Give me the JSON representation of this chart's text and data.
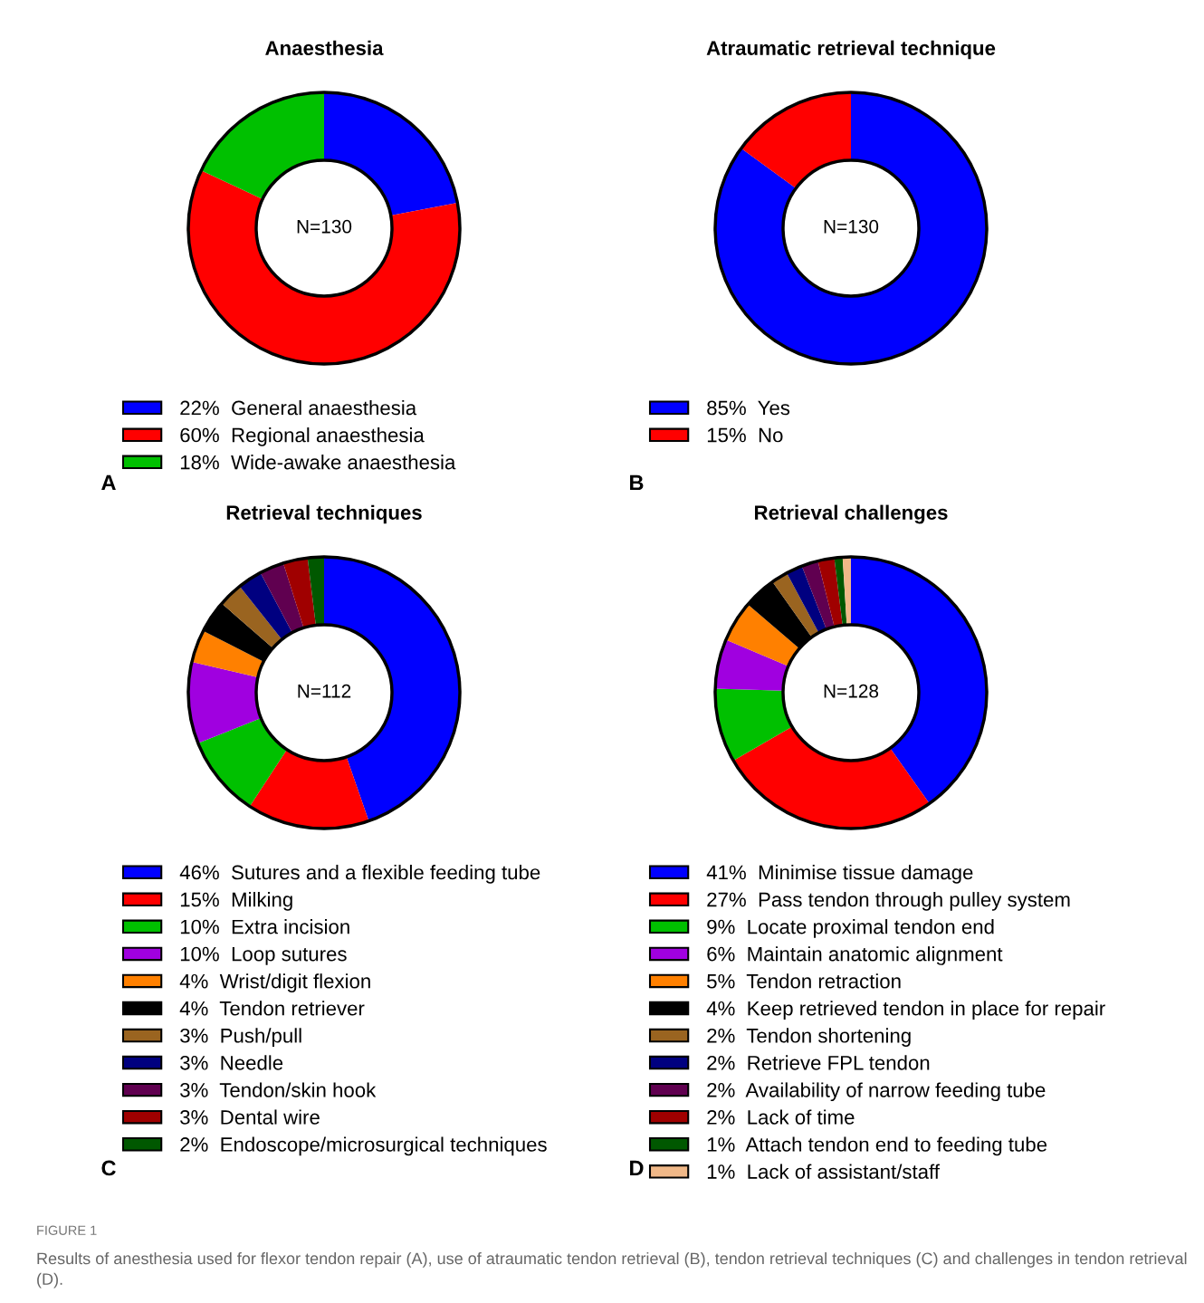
{
  "chart_data": [
    {
      "type": "donut",
      "title": "Anaesthesia",
      "categories": [
        "General anaesthesia",
        "Regional anaesthesia",
        "Wide-awake anaesthesia"
      ],
      "values": [
        22,
        60,
        18
      ],
      "value_labels": [
        "22%",
        "60%",
        "18%"
      ],
      "colors": [
        "#0000ff",
        "#ff0000",
        "#00c000"
      ],
      "annotations": [
        "N=130",
        "A"
      ],
      "legend": "bottom"
    },
    {
      "type": "donut",
      "title": "Atraumatic retrieval technique",
      "categories": [
        "Yes",
        "No"
      ],
      "values": [
        85,
        15
      ],
      "value_labels": [
        "85%",
        "15%"
      ],
      "colors": [
        "#0000ff",
        "#ff0000"
      ],
      "annotations": [
        "N=130",
        "B"
      ],
      "legend": "bottom"
    },
    {
      "type": "donut",
      "title": "Retrieval techniques",
      "categories": [
        "Sutures and a flexible feeding tube",
        "Milking",
        "Extra incision",
        "Loop sutures",
        "Wrist/digit flexion",
        "Tendon retriever",
        "Push/pull",
        "Needle",
        "Tendon/skin hook",
        "Dental wire",
        "Endoscope/microsurgical techniques"
      ],
      "values": [
        46,
        15,
        10,
        10,
        4,
        4,
        3,
        3,
        3,
        3,
        2
      ],
      "value_labels": [
        "46%",
        "15%",
        "10%",
        "10%",
        "4%",
        "4%",
        "3%",
        "3%",
        "3%",
        "3%",
        "2%"
      ],
      "colors": [
        "#0000ff",
        "#ff0000",
        "#00c000",
        "#a000e0",
        "#ff8000",
        "#000000",
        "#9a6420",
        "#000080",
        "#600050",
        "#a00000",
        "#005800"
      ],
      "annotations": [
        "N=112",
        "C"
      ],
      "legend": "bottom"
    },
    {
      "type": "donut",
      "title": "Retrieval challenges",
      "categories": [
        "Minimise tissue damage",
        "Pass tendon through pulley system",
        "Locate proximal tendon end",
        "Maintain anatomic alignment",
        "Tendon retraction",
        "Keep retrieved tendon in place for repair",
        "Tendon shortening",
        "Retrieve FPL tendon",
        "Availability of narrow feeding tube",
        "Lack of time",
        "Attach tendon end to feeding tube",
        "Lack of assistant/staff"
      ],
      "values": [
        41,
        27,
        9,
        6,
        5,
        4,
        2,
        2,
        2,
        2,
        1,
        1
      ],
      "value_labels": [
        "41%",
        "27%",
        "9%",
        "6%",
        "5%",
        "4%",
        "2%",
        "2%",
        "2%",
        "2%",
        "1%",
        "1%"
      ],
      "colors": [
        "#0000ff",
        "#ff0000",
        "#00c000",
        "#a000e0",
        "#ff8000",
        "#000000",
        "#9a6420",
        "#000080",
        "#600050",
        "#a00000",
        "#005800",
        "#f0b888"
      ],
      "annotations": [
        "N=128",
        "D",
        "FIGURE 1",
        "Results of anesthesia used for flexor tendon repair (A), use of atraumatic tendon retrieval (B), tendon retrieval techniques (C) and challenges in tendon retrieval (D)."
      ],
      "legend": "bottom"
    }
  ]
}
